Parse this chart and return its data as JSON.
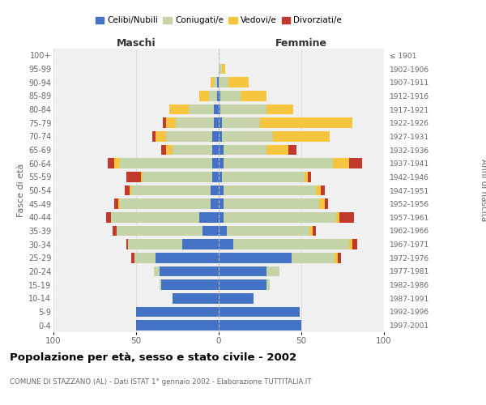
{
  "age_groups": [
    "0-4",
    "5-9",
    "10-14",
    "15-19",
    "20-24",
    "25-29",
    "30-34",
    "35-39",
    "40-44",
    "45-49",
    "50-54",
    "55-59",
    "60-64",
    "65-69",
    "70-74",
    "75-79",
    "80-84",
    "85-89",
    "90-94",
    "95-99",
    "100+"
  ],
  "birth_years": [
    "1997-2001",
    "1992-1996",
    "1987-1991",
    "1982-1986",
    "1977-1981",
    "1972-1976",
    "1967-1971",
    "1962-1966",
    "1957-1961",
    "1952-1956",
    "1947-1951",
    "1942-1946",
    "1937-1941",
    "1932-1936",
    "1927-1931",
    "1922-1926",
    "1917-1921",
    "1912-1916",
    "1907-1911",
    "1902-1906",
    "≤ 1901"
  ],
  "males": {
    "celibi": [
      50,
      50,
      28,
      35,
      36,
      38,
      22,
      10,
      12,
      5,
      5,
      4,
      4,
      4,
      4,
      3,
      3,
      1,
      1,
      0,
      0
    ],
    "coniugati": [
      0,
      0,
      0,
      1,
      3,
      13,
      33,
      52,
      53,
      55,
      48,
      42,
      56,
      24,
      28,
      23,
      15,
      5,
      2,
      0,
      0
    ],
    "vedovi": [
      0,
      0,
      0,
      0,
      0,
      0,
      0,
      0,
      0,
      1,
      1,
      1,
      3,
      4,
      6,
      6,
      12,
      6,
      2,
      0,
      0
    ],
    "divorziati": [
      0,
      0,
      0,
      0,
      0,
      2,
      1,
      2,
      3,
      2,
      3,
      9,
      4,
      3,
      2,
      2,
      0,
      0,
      0,
      0,
      0
    ]
  },
  "females": {
    "nubili": [
      50,
      49,
      21,
      29,
      29,
      44,
      9,
      5,
      3,
      3,
      3,
      2,
      3,
      3,
      2,
      2,
      1,
      1,
      0,
      0,
      0
    ],
    "coniugate": [
      0,
      0,
      0,
      2,
      8,
      26,
      70,
      50,
      68,
      58,
      56,
      50,
      66,
      26,
      31,
      23,
      28,
      12,
      6,
      2,
      0
    ],
    "vedove": [
      0,
      0,
      0,
      0,
      0,
      2,
      2,
      2,
      2,
      3,
      3,
      2,
      10,
      13,
      34,
      56,
      16,
      16,
      12,
      2,
      0
    ],
    "divorziate": [
      0,
      0,
      0,
      0,
      0,
      2,
      3,
      2,
      9,
      2,
      2,
      2,
      8,
      5,
      0,
      0,
      0,
      0,
      0,
      0,
      0
    ]
  },
  "colors": {
    "celibi_nubili": "#4472c4",
    "coniugati": "#c5d4a8",
    "vedovi": "#f5c540",
    "divorziati": "#c0392b"
  },
  "xlim": 100,
  "title": "Popolazione per età, sesso e stato civile - 2002",
  "subtitle": "COMUNE DI STAZZANO (AL) - Dati ISTAT 1° gennaio 2002 - Elaborazione TUTTITALIA.IT",
  "ylabel_left": "Fasce di età",
  "ylabel_right": "Anni di nascita",
  "xlabel_left": "Maschi",
  "xlabel_right": "Femmine",
  "bg_color": "#f0f0f0"
}
